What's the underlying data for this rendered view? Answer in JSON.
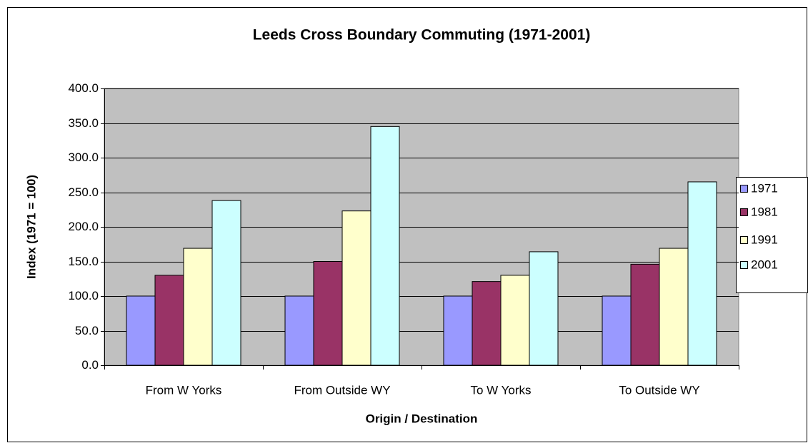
{
  "chart_data": {
    "type": "bar",
    "title": "Leeds Cross Boundary Commuting (1971-2001)",
    "x_label": "Origin / Destination",
    "y_label": "Index (1971 = 100)",
    "categories": [
      "From W Yorks",
      "From Outside WY",
      "To W Yorks",
      "To Outside WY"
    ],
    "series": [
      {
        "name": "1971",
        "color": "#9999ff",
        "values": [
          100,
          100,
          100,
          100
        ]
      },
      {
        "name": "1981",
        "color": "#993366",
        "values": [
          130,
          150,
          121,
          146
        ]
      },
      {
        "name": "1991",
        "color": "#ffffcc",
        "values": [
          169,
          223,
          130,
          169
        ]
      },
      {
        "name": "2001",
        "color": "#ccffff",
        "values": [
          238,
          345,
          164,
          265
        ]
      }
    ],
    "ylim": [
      0,
      400
    ],
    "yticks": [
      {
        "value": 0,
        "label": "0.0"
      },
      {
        "value": 50,
        "label": "50.0"
      },
      {
        "value": 100,
        "label": "100.0"
      },
      {
        "value": 150,
        "label": "150.0"
      },
      {
        "value": 200,
        "label": "200.0"
      },
      {
        "value": 250,
        "label": "250.0"
      },
      {
        "value": 300,
        "label": "300.0"
      },
      {
        "value": 350,
        "label": "350.0"
      },
      {
        "value": 400,
        "label": "400.0"
      }
    ],
    "grid": true,
    "legend": "right"
  }
}
